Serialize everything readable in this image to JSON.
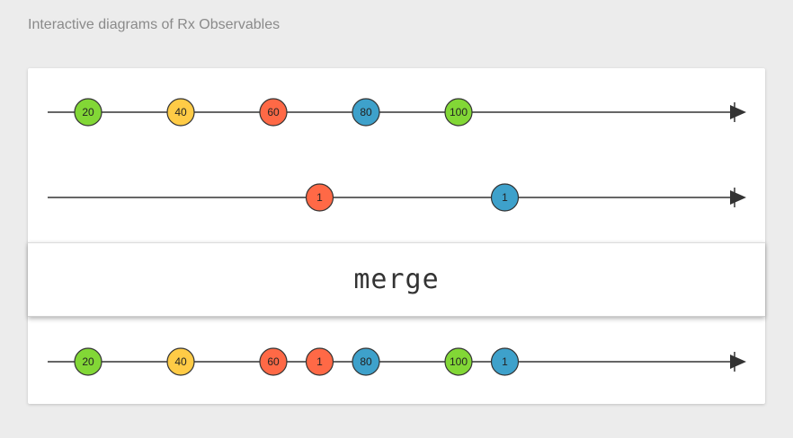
{
  "page": {
    "title": "Interactive diagrams of Rx Observables"
  },
  "operator": {
    "label": "merge"
  },
  "colors": {
    "green": "#82d736",
    "yellow": "#ffcb46",
    "red": "#ff6946",
    "blue": "#3ea1cb",
    "stroke": "#333333"
  },
  "timelines": [
    {
      "name": "input-1",
      "marbles": [
        {
          "t": 10,
          "label": "20",
          "color": "green"
        },
        {
          "t": 20,
          "label": "40",
          "color": "yellow"
        },
        {
          "t": 30,
          "label": "60",
          "color": "red"
        },
        {
          "t": 40,
          "label": "80",
          "color": "blue"
        },
        {
          "t": 50,
          "label": "100",
          "color": "green"
        }
      ],
      "end": 80
    },
    {
      "name": "input-2",
      "marbles": [
        {
          "t": 35,
          "label": "1",
          "color": "red"
        },
        {
          "t": 55,
          "label": "1",
          "color": "blue"
        }
      ],
      "end": 80
    },
    {
      "name": "output",
      "marbles": [
        {
          "t": 10,
          "label": "20",
          "color": "green"
        },
        {
          "t": 20,
          "label": "40",
          "color": "yellow"
        },
        {
          "t": 30,
          "label": "60",
          "color": "red"
        },
        {
          "t": 35,
          "label": "1",
          "color": "red"
        },
        {
          "t": 40,
          "label": "80",
          "color": "blue"
        },
        {
          "t": 50,
          "label": "100",
          "color": "green"
        },
        {
          "t": 55,
          "label": "1",
          "color": "blue"
        }
      ],
      "end": 80
    }
  ]
}
